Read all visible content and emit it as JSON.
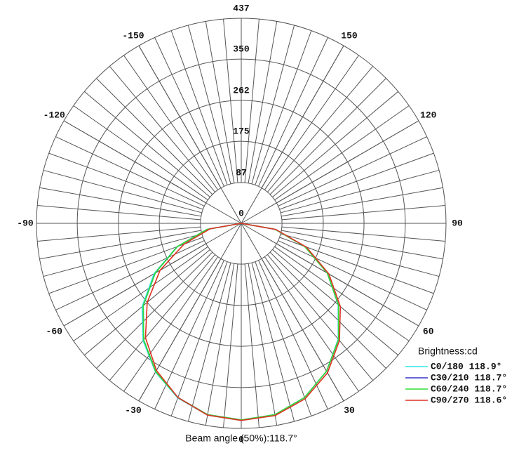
{
  "chart_data": {
    "type": "polar",
    "rlim": [
      0,
      437
    ],
    "rticks": [
      0,
      87,
      175,
      262,
      350,
      437
    ],
    "angle_ticks": [
      -150,
      -120,
      -90,
      -60,
      -30,
      0,
      30,
      60,
      90,
      120,
      150
    ],
    "angles": [
      -90,
      -80,
      -70,
      -60,
      -50,
      -40,
      -30,
      -20,
      -10,
      0,
      10,
      20,
      30,
      40,
      50,
      60,
      70,
      80,
      90
    ],
    "legend_title": "Brightness:cd",
    "series": [
      {
        "name": "C0/180 118.9°",
        "color": "#33e6e6",
        "values": [
          0,
          75,
          146,
          215,
          276,
          326,
          366,
          396,
          415,
          420,
          414,
          395,
          364,
          322,
          270,
          212,
          144,
          73,
          0
        ]
      },
      {
        "name": "C30/210 118.7°",
        "color": "#3333cc",
        "values": [
          0,
          74,
          145,
          212,
          273,
          324,
          365,
          395,
          414,
          419,
          414,
          395,
          364,
          323,
          271,
          212,
          144,
          73,
          0
        ]
      },
      {
        "name": "C60/240 118.7°",
        "color": "#33dd33",
        "values": [
          0,
          74,
          145,
          212,
          273,
          324,
          365,
          395,
          414,
          419,
          414,
          395,
          364,
          323,
          271,
          212,
          144,
          73,
          0
        ]
      },
      {
        "name": "C90/270 118.6°",
        "color": "#dd3322",
        "values": [
          0,
          68,
          130,
          200,
          262,
          318,
          362,
          395,
          415,
          420,
          416,
          398,
          368,
          326,
          276,
          216,
          148,
          75,
          0
        ]
      }
    ],
    "footer": "Beam angle (50%):118.7°"
  }
}
